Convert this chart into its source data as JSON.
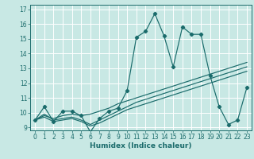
{
  "xlabel": "Humidex (Indice chaleur)",
  "xlim": [
    -0.5,
    23.5
  ],
  "ylim": [
    8.8,
    17.3
  ],
  "xticks": [
    0,
    1,
    2,
    3,
    4,
    5,
    6,
    7,
    8,
    9,
    10,
    11,
    12,
    13,
    14,
    15,
    16,
    17,
    18,
    19,
    20,
    21,
    22,
    23
  ],
  "yticks": [
    9,
    10,
    11,
    12,
    13,
    14,
    15,
    16,
    17
  ],
  "bg_color": "#c8e8e4",
  "line_color": "#1a6b6b",
  "grid_color": "#ffffff",
  "series0": [
    9.5,
    10.4,
    9.4,
    10.1,
    10.1,
    9.8,
    8.7,
    9.6,
    10.1,
    10.3,
    11.5,
    15.1,
    15.5,
    16.7,
    15.2,
    13.1,
    15.8,
    15.3,
    15.3,
    12.5,
    10.4,
    9.2,
    9.5,
    11.7
  ],
  "series1": [
    9.5,
    9.7,
    9.4,
    9.5,
    9.6,
    9.4,
    9.1,
    9.3,
    9.6,
    9.9,
    10.2,
    10.4,
    10.6,
    10.8,
    11.0,
    11.2,
    11.4,
    11.6,
    11.8,
    12.0,
    12.2,
    12.4,
    12.6,
    12.8
  ],
  "series2": [
    9.5,
    9.8,
    9.6,
    9.8,
    9.9,
    9.8,
    9.9,
    10.1,
    10.3,
    10.6,
    10.8,
    11.0,
    11.2,
    11.4,
    11.6,
    11.8,
    12.0,
    12.2,
    12.4,
    12.6,
    12.8,
    13.0,
    13.2,
    13.4
  ],
  "series3": [
    9.5,
    9.9,
    9.5,
    9.6,
    9.7,
    9.5,
    9.2,
    9.5,
    9.8,
    10.1,
    10.4,
    10.7,
    10.9,
    11.1,
    11.3,
    11.5,
    11.7,
    11.9,
    12.1,
    12.3,
    12.5,
    12.7,
    12.9,
    13.1
  ],
  "tick_fontsize": 5.5,
  "xlabel_fontsize": 6.5,
  "lw": 0.85,
  "marker_size": 2.2
}
